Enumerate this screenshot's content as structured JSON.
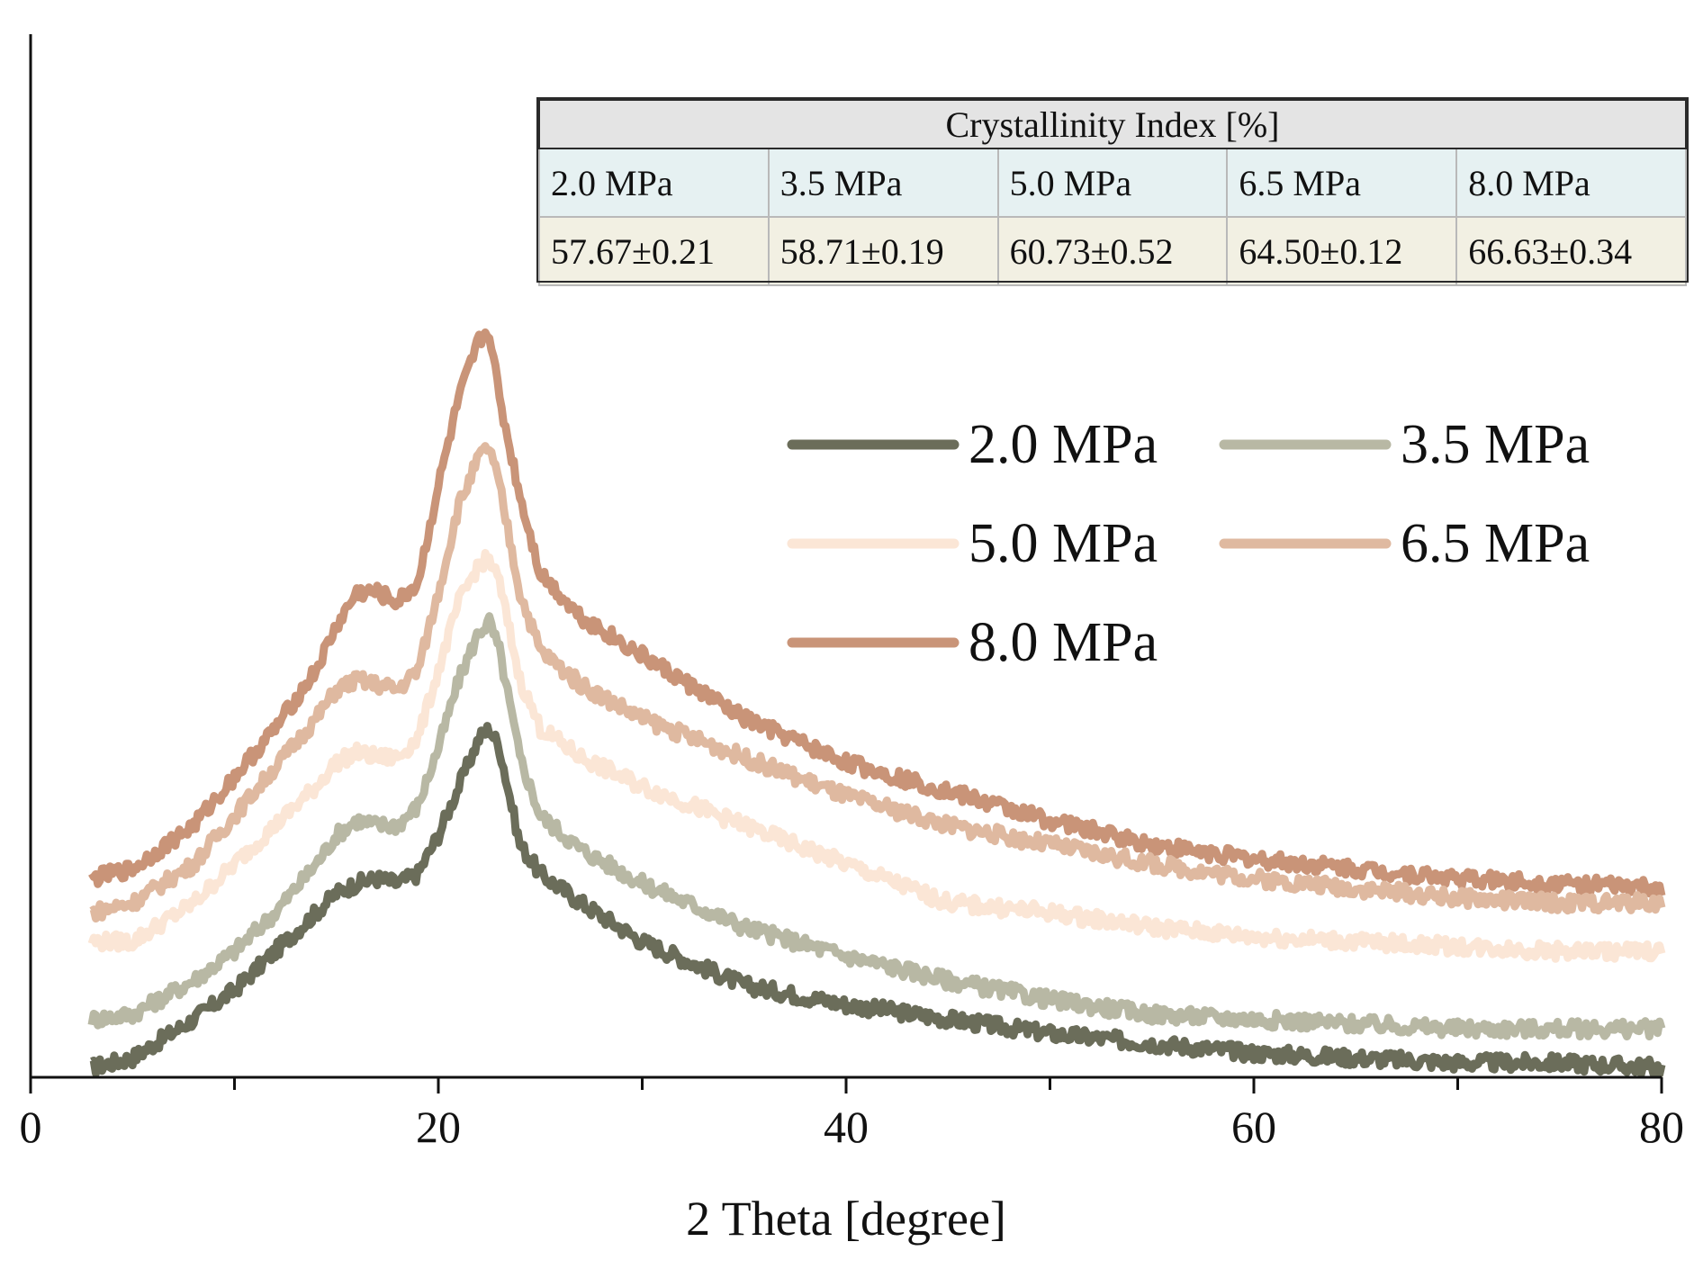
{
  "chart_data": {
    "type": "line",
    "xlabel": "2 Theta [degree]",
    "ylabel": "",
    "xlim": [
      0,
      80
    ],
    "ylim": [
      0,
      100
    ],
    "x_ticks": [
      0,
      20,
      40,
      60,
      80
    ],
    "x_minor_ticks": [
      10,
      30,
      50,
      70
    ],
    "legend": {
      "placement": "center-right",
      "columns": 2
    },
    "x": [
      3,
      5,
      8,
      10,
      12,
      14,
      15,
      16,
      17,
      18,
      19,
      20,
      21,
      22,
      22.5,
      23,
      24,
      25,
      27,
      30,
      35,
      40,
      45,
      50,
      55,
      60,
      65,
      70,
      75,
      80
    ],
    "series": [
      {
        "name": "2.0 MPa",
        "color": "#6b6d5a",
        "values": [
          1,
          2,
          6,
          9,
          13,
          17,
          19,
          20,
          20.5,
          20,
          21,
          25,
          30,
          35,
          36,
          34,
          24,
          21,
          18,
          14,
          9.5,
          7.5,
          6,
          4.5,
          3.5,
          2.5,
          2,
          1.5,
          1.5,
          1
        ]
      },
      {
        "name": "3.5 MPa",
        "color": "#b8b8a4",
        "values": [
          6,
          6.5,
          10,
          13,
          17,
          22,
          25,
          26.5,
          26,
          26,
          28,
          34,
          41,
          46,
          47,
          44,
          33,
          27,
          23.5,
          20,
          15.5,
          12.5,
          10,
          8,
          6.5,
          6,
          5.5,
          5,
          5,
          5
        ]
      },
      {
        "name": "5.0 MPa",
        "color": "#fbe6d6",
        "values": [
          14,
          14,
          18,
          22,
          26,
          30,
          32.5,
          33.5,
          33,
          33,
          35,
          42,
          49,
          53,
          53.5,
          51,
          41,
          36,
          33,
          30,
          26,
          22,
          18,
          17,
          15.5,
          14.5,
          14,
          13.5,
          13,
          13
        ]
      },
      {
        "name": "6.5 MPa",
        "color": "#dfb9a0",
        "values": [
          17,
          18,
          22,
          27,
          32,
          37,
          40,
          41,
          40.5,
          40,
          42,
          50,
          59,
          64,
          65,
          61,
          50,
          44,
          40.5,
          37,
          33,
          29,
          26,
          24,
          22,
          20.5,
          19.5,
          18.5,
          18,
          18
        ]
      },
      {
        "name": "8.0 MPa",
        "color": "#c99478",
        "values": [
          20.5,
          21.5,
          26,
          31,
          36,
          42,
          46.5,
          50,
          50,
          49,
          51,
          61,
          70,
          76,
          77,
          70,
          60,
          52,
          47.5,
          43.5,
          37,
          32.5,
          29.5,
          26.5,
          24,
          22.5,
          21.5,
          20.5,
          20,
          19.5
        ]
      }
    ]
  },
  "table": {
    "title": "Crystallinity Index [%]",
    "headers": [
      "2.0 MPa",
      "3.5 MPa",
      "5.0 MPa",
      "6.5 MPa",
      "8.0 MPa"
    ],
    "values": [
      "57.67±0.21",
      "58.71±0.19",
      "60.73±0.52",
      "64.50±0.12",
      "66.63±0.34"
    ]
  }
}
